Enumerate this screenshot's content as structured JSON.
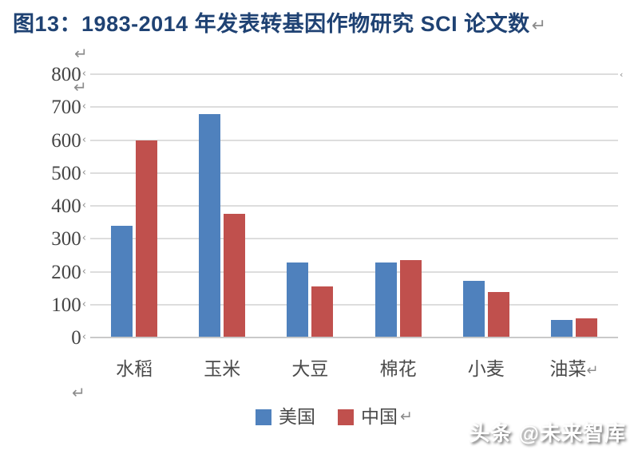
{
  "title": {
    "text": "图13：1983-2014 年发表转基因作物研究 SCI 论文数"
  },
  "formatting_marks": {
    "return_mark": "↵",
    "small_tick_mark": "‹"
  },
  "chart_data": {
    "type": "bar",
    "title": "图13：1983-2014 年发表转基因作物研究 SCI 论文数",
    "categories": [
      "水稻",
      "玉米",
      "大豆",
      "棉花",
      "小麦",
      "油菜"
    ],
    "series": [
      {
        "name": "美国",
        "color": "#4F81BD",
        "values": [
          340,
          680,
          228,
          228,
          172,
          53
        ]
      },
      {
        "name": "中国",
        "color": "#C0504D",
        "values": [
          600,
          375,
          155,
          235,
          137,
          57
        ]
      }
    ],
    "ylim": [
      0,
      800
    ],
    "yticks": [
      800,
      700,
      600,
      500,
      400,
      300,
      200,
      100,
      0
    ],
    "grid": true,
    "legend_position": "bottom"
  },
  "watermark": {
    "text": "头条 @未来智库"
  },
  "colors": {
    "title_navy": "#1F4273",
    "us_blue": "#4F81BD",
    "cn_red": "#C0504D",
    "axis_text": "#454545",
    "gridline": "#DDDDDD",
    "mark_gray": "#8C8C8C"
  }
}
